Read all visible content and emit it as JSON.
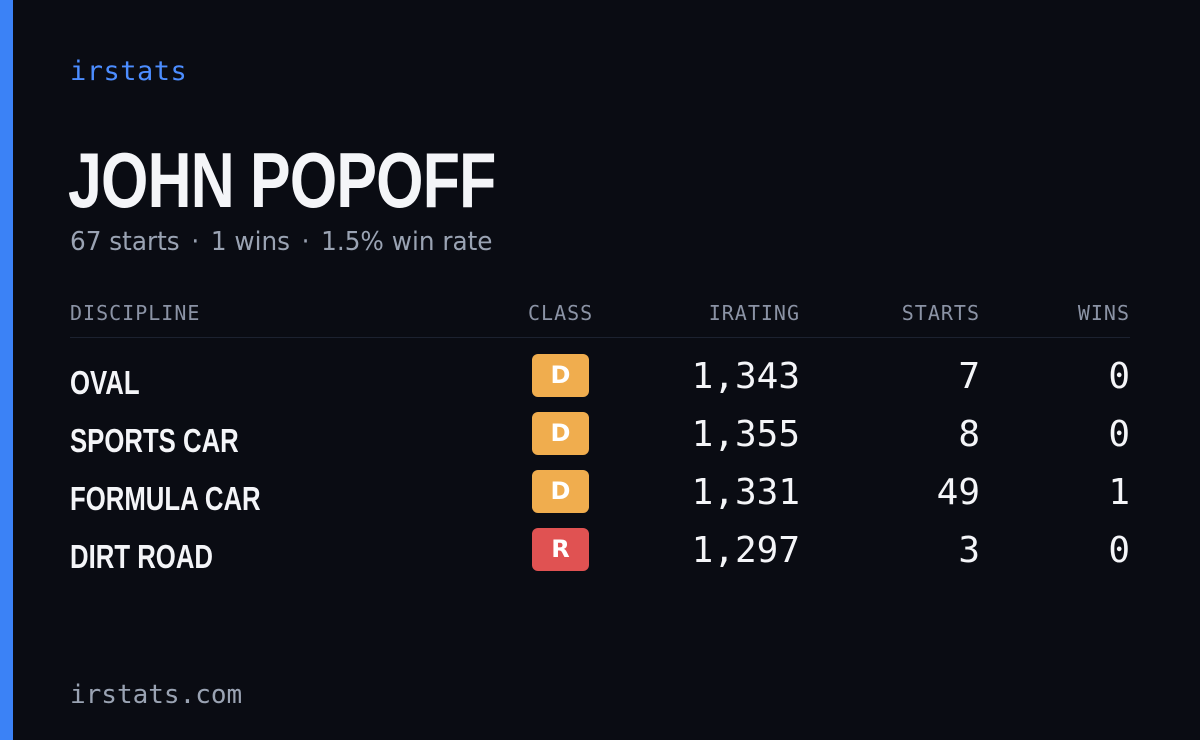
{
  "brand": "irstats",
  "driver": {
    "name": "JOHN POPOFF"
  },
  "summary": {
    "starts": "67 starts",
    "wins": "1 wins",
    "win_rate": "1.5% win rate",
    "separator": "·"
  },
  "table": {
    "headers": {
      "discipline": "DISCIPLINE",
      "class": "CLASS",
      "irating": "IRATING",
      "starts": "STARTS",
      "wins": "WINS"
    },
    "rows": [
      {
        "discipline": "OVAL",
        "class": "D",
        "class_color": "#f0ad4e",
        "irating": "1,343",
        "starts": "7",
        "wins": "0"
      },
      {
        "discipline": "SPORTS CAR",
        "class": "D",
        "class_color": "#f0ad4e",
        "irating": "1,355",
        "starts": "8",
        "wins": "0"
      },
      {
        "discipline": "FORMULA CAR",
        "class": "D",
        "class_color": "#f0ad4e",
        "irating": "1,331",
        "starts": "49",
        "wins": "1"
      },
      {
        "discipline": "DIRT ROAD",
        "class": "R",
        "class_color": "#e05252",
        "irating": "1,297",
        "starts": "3",
        "wins": "0"
      }
    ]
  },
  "footer": "irstats.com",
  "colors": {
    "background": "#0a0c13",
    "accent": "#3b82f6",
    "brand": "#4c8dff"
  }
}
